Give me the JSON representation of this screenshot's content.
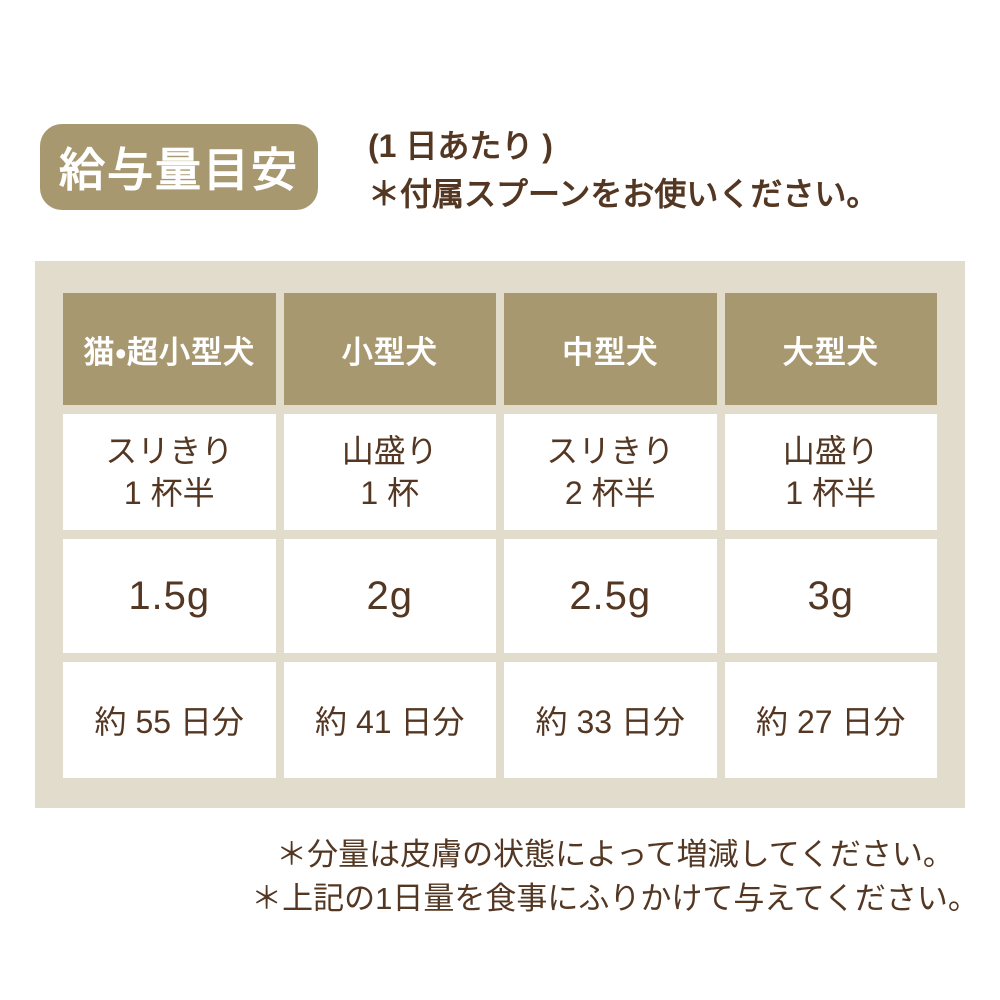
{
  "badge": {
    "label": "給与量目安"
  },
  "intro": {
    "line1": "(1 日あたり )",
    "line2": "＊付属スプーンをお使いください。"
  },
  "table": {
    "columns": [
      {
        "header": "猫・超小型犬",
        "spoon_line1": "スリきり",
        "spoon_line2": "1 杯半",
        "grams": "1.5g",
        "days": "約 55 日分"
      },
      {
        "header": "小型犬",
        "spoon_line1": "山盛り",
        "spoon_line2": "1 杯",
        "grams": "2g",
        "days": "約 41 日分"
      },
      {
        "header": "中型犬",
        "spoon_line1": "スリきり",
        "spoon_line2": "2 杯半",
        "grams": "2.5g",
        "days": "約 33 日分"
      },
      {
        "header": "大型犬",
        "spoon_line1": "山盛り",
        "spoon_line2": "1 杯半",
        "grams": "3g",
        "days": "約 27 日分"
      }
    ]
  },
  "notes": {
    "line1": "＊分量は皮膚の状態によって増減してください。",
    "line2": "＊上記の1日量を食事にふりかけて与えてください。"
  },
  "colors": {
    "tan": "#a79870",
    "panel_beige": "#e1dccc",
    "text_brown": "#543722",
    "cell_white": "#ffffff"
  }
}
